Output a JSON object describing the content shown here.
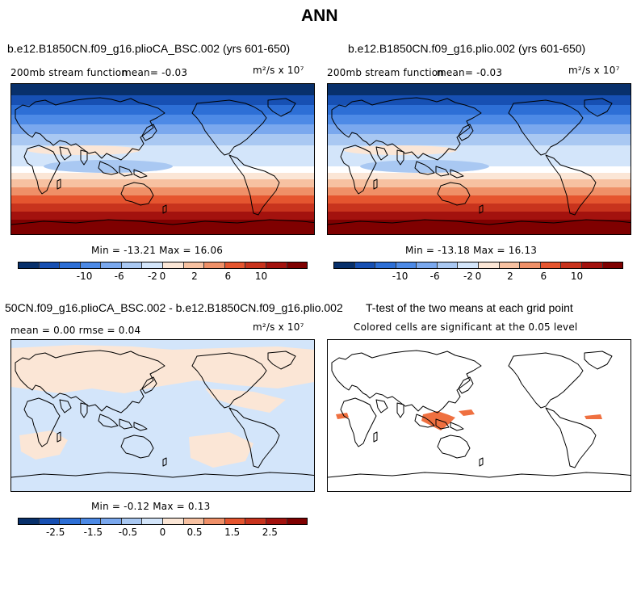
{
  "page_title": "ANN",
  "colors": {
    "scale": [
      "#08306b",
      "#1750b3",
      "#2d6fd6",
      "#4d8ae6",
      "#7aa8ee",
      "#a9c8f2",
      "#d3e5fa",
      "#fbe6d6",
      "#f7c1a1",
      "#ef9068",
      "#e5552f",
      "#c8331d",
      "#a3120e",
      "#7f0000"
    ],
    "continent_outline": "#000000",
    "significant_cell": "#ef7040"
  },
  "panels": [
    {
      "title": "b.e12.B1850CN.f09_g16.plioCA_BSC.002 (yrs 601-650)",
      "left_text": "200mb stream function",
      "mean_text": "mean=   -0.03",
      "units_text": "m²/s x 10⁷",
      "minmax_text": "Min = -13.21  Max =   16.06",
      "ticks": [
        "-10",
        "-6",
        "-2",
        "0",
        "2",
        "6",
        "10"
      ]
    },
    {
      "title": "b.e12.B1850CN.f09_g16.plio.002 (yrs 601-650)",
      "left_text": "200mb stream function",
      "mean_text": "mean=   -0.03",
      "units_text": "m²/s x 10⁷",
      "minmax_text": "Min = -13.18  Max =   16.13",
      "ticks": [
        "-10",
        "-6",
        "-2",
        "0",
        "2",
        "6",
        "10"
      ]
    },
    {
      "title": "50CN.f09_g16.plioCA_BSC.002 - b.e12.B1850CN.f09_g16.plio.002",
      "left_text": "mean =    0.00      rmse =    0.04",
      "units_text": "m²/s x 10⁷",
      "minmax_text": "Min = -0.12  Max =    0.13",
      "ticks": [
        "-2.5",
        "-1.5",
        "-0.5",
        "0",
        "0.5",
        "1.5",
        "2.5"
      ]
    },
    {
      "title": "T-test of the two means at each grid point",
      "subtitle": "Colored cells are significant at the 0.05 level"
    }
  ]
}
